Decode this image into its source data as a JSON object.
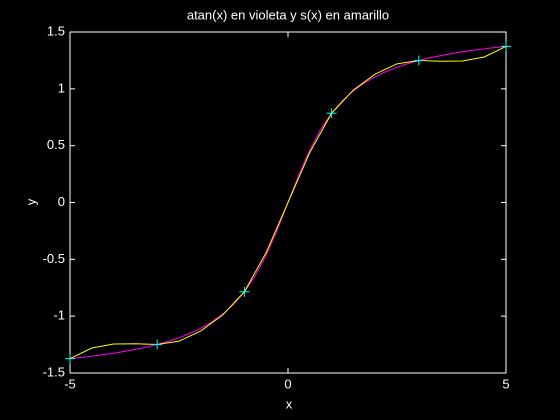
{
  "chart_data": {
    "type": "line",
    "title": "atan(x) en violeta y s(x) en amarillo",
    "xlabel": "x",
    "ylabel": "y",
    "xlim": [
      -5,
      5
    ],
    "ylim": [
      -1.5,
      1.5
    ],
    "xticks": [
      -5,
      0,
      5
    ],
    "yticks": [
      -1.5,
      -1,
      -0.5,
      0,
      0.5,
      1,
      1.5
    ],
    "background": "#000000",
    "axis_color": "#ffffff",
    "series": [
      {
        "color": "#ff00ff",
        "marker": "none",
        "x": [
          -5,
          -4.75,
          -4.5,
          -4.25,
          -4,
          -3.75,
          -3.5,
          -3.25,
          -3,
          -2.75,
          -2.5,
          -2.25,
          -2,
          -1.75,
          -1.5,
          -1.25,
          -1,
          -0.75,
          -0.5,
          -0.25,
          0,
          0.25,
          0.5,
          0.75,
          1,
          1.25,
          1.5,
          1.75,
          2,
          2.25,
          2.5,
          2.75,
          3,
          3.25,
          3.5,
          3.75,
          4,
          4.25,
          4.5,
          4.75,
          5
        ],
        "values": [
          -1.3734,
          -1.3633,
          -1.3521,
          -1.3397,
          -1.3258,
          -1.3102,
          -1.2925,
          -1.2723,
          -1.249,
          -1.222,
          -1.1903,
          -1.1526,
          -1.1071,
          -1.0517,
          -0.9828,
          -0.8961,
          -0.7854,
          -0.6435,
          -0.4636,
          -0.245,
          0,
          0.245,
          0.4636,
          0.6435,
          0.7854,
          0.8961,
          0.9828,
          1.0517,
          1.1071,
          1.1526,
          1.1903,
          1.222,
          1.249,
          1.2723,
          1.2925,
          1.3102,
          1.3258,
          1.3397,
          1.3521,
          1.3633,
          1.3734
        ]
      },
      {
        "color": "#ffff00",
        "marker": "none",
        "x": [
          -5,
          -4.5,
          -4,
          -3.5,
          -3,
          -2.5,
          -2,
          -1.5,
          -1,
          -0.5,
          0,
          0.5,
          1,
          1.5,
          2,
          2.5,
          3,
          3.5,
          4,
          4.5,
          5
        ],
        "values": [
          -1.3734,
          -1.28,
          -1.245,
          -1.243,
          -1.249,
          -1.22,
          -1.13,
          -0.99,
          -0.7854,
          -0.44,
          0,
          0.44,
          0.7854,
          0.99,
          1.13,
          1.22,
          1.249,
          1.243,
          1.245,
          1.28,
          1.3734
        ]
      },
      {
        "color": "#00ffff",
        "marker": "+",
        "x": [
          -5,
          -3,
          -1,
          1,
          3,
          5
        ],
        "values": [
          -1.3734,
          -1.249,
          -0.7854,
          0.7854,
          1.249,
          1.3734
        ]
      }
    ]
  }
}
